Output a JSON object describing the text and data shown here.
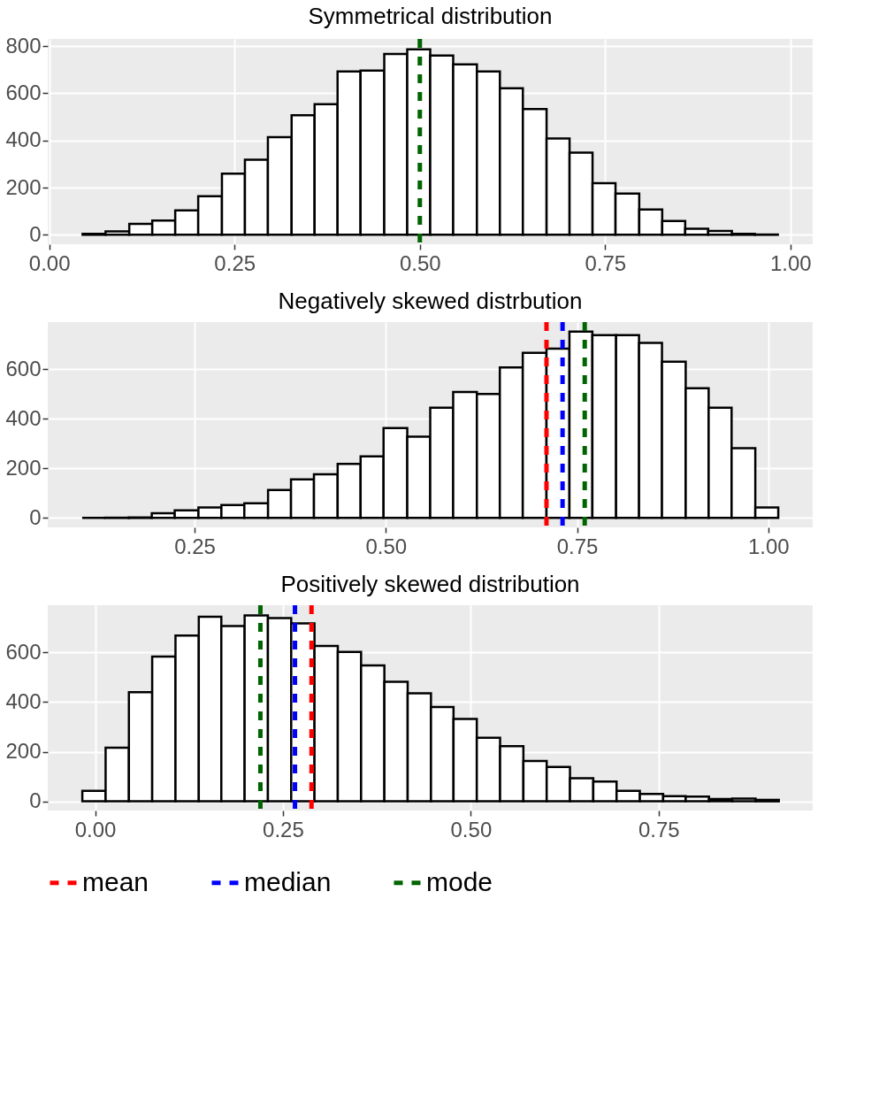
{
  "chart_data": [
    {
      "type": "histogram",
      "title": "Symmetrical distribution",
      "bins": [
        0.045,
        0.076,
        0.108,
        0.139,
        0.17,
        0.201,
        0.233,
        0.264,
        0.295,
        0.327,
        0.358,
        0.389,
        0.42,
        0.452,
        0.483,
        0.514,
        0.545,
        0.577,
        0.608,
        0.639,
        0.671,
        0.702,
        0.733,
        0.764,
        0.796,
        0.827,
        0.858,
        0.889,
        0.921,
        0.952,
        0.983
      ],
      "values": [
        4,
        14,
        46,
        60,
        103,
        163,
        259,
        318,
        414,
        507,
        553,
        692,
        696,
        766,
        786,
        760,
        722,
        692,
        621,
        533,
        408,
        348,
        219,
        175,
        107,
        58,
        26,
        16,
        4,
        1
      ],
      "xlim": [
        -0.002,
        1.03
      ],
      "xticks": [
        {
          "value": 0,
          "label": "0.00"
        },
        {
          "value": 0.25,
          "label": "0.25"
        },
        {
          "value": 0.5,
          "label": "0.50"
        },
        {
          "value": 0.75,
          "label": "0.75"
        },
        {
          "value": 1,
          "label": "1.00"
        }
      ],
      "ylim": [
        -40,
        830
      ],
      "yticks": [
        0,
        200,
        400,
        600,
        800
      ],
      "grid": true,
      "ref_lines": [
        {
          "axis": "x",
          "value": 0.5,
          "color": "#006400",
          "line_style": "dashed"
        }
      ]
    },
    {
      "type": "histogram",
      "title": "Negatively skewed distrbution",
      "bins": [
        0.103,
        0.133,
        0.164,
        0.194,
        0.224,
        0.255,
        0.285,
        0.315,
        0.346,
        0.376,
        0.406,
        0.437,
        0.467,
        0.497,
        0.528,
        0.558,
        0.588,
        0.619,
        0.649,
        0.679,
        0.71,
        0.74,
        0.77,
        0.801,
        0.831,
        0.861,
        0.892,
        0.922,
        0.952,
        0.983,
        1.013
      ],
      "values": [
        0,
        1,
        2,
        19,
        31,
        42,
        52,
        59,
        113,
        156,
        176,
        218,
        248,
        363,
        328,
        445,
        508,
        500,
        607,
        666,
        683,
        752,
        737,
        737,
        706,
        630,
        523,
        445,
        281,
        42
      ],
      "xlim": [
        0.058,
        1.058
      ],
      "xticks": [
        {
          "value": 0.25,
          "label": "0.25"
        },
        {
          "value": 0.5,
          "label": "0.50"
        },
        {
          "value": 0.75,
          "label": "0.75"
        },
        {
          "value": 1,
          "label": "1.00"
        }
      ],
      "ylim": [
        -38,
        790
      ],
      "yticks": [
        0,
        200,
        400,
        600
      ],
      "grid": true,
      "ref_lines": [
        {
          "axis": "x",
          "value": 0.71,
          "color": "#ff0000",
          "line_style": "dashed"
        },
        {
          "axis": "x",
          "value": 0.731,
          "color": "#0000ff",
          "line_style": "dashed"
        },
        {
          "axis": "x",
          "value": 0.76,
          "color": "#006400",
          "line_style": "dashed"
        }
      ]
    },
    {
      "type": "histogram",
      "title": "Positively skewed distribution",
      "bins": [
        -0.017,
        0.014,
        0.045,
        0.076,
        0.107,
        0.138,
        0.168,
        0.199,
        0.23,
        0.261,
        0.292,
        0.323,
        0.354,
        0.385,
        0.416,
        0.447,
        0.477,
        0.508,
        0.539,
        0.57,
        0.601,
        0.632,
        0.663,
        0.694,
        0.725,
        0.756,
        0.786,
        0.817,
        0.848,
        0.879,
        0.91
      ],
      "values": [
        42,
        216,
        440,
        583,
        668,
        744,
        706,
        749,
        738,
        717,
        626,
        602,
        548,
        482,
        435,
        380,
        332,
        256,
        222,
        163,
        139,
        93,
        80,
        42,
        30,
        21,
        19,
        9,
        11,
        6
      ],
      "xlim": [
        -0.063,
        0.955
      ],
      "xticks": [
        {
          "value": 0,
          "label": "0.00"
        },
        {
          "value": 0.25,
          "label": "0.25"
        },
        {
          "value": 0.5,
          "label": "0.50"
        },
        {
          "value": 0.75,
          "label": "0.75"
        }
      ],
      "ylim": [
        -37,
        790
      ],
      "yticks": [
        0,
        200,
        400,
        600
      ],
      "grid": true,
      "legend": "bottom",
      "ref_lines": [
        {
          "axis": "x",
          "value": 0.288,
          "label": "mean",
          "color": "#ff0000",
          "line_style": "dashed"
        },
        {
          "axis": "x",
          "value": 0.266,
          "label": "median",
          "color": "#0000ff",
          "line_style": "dashed"
        },
        {
          "axis": "x",
          "value": 0.22,
          "label": "mode",
          "color": "#006400",
          "line_style": "dashed"
        }
      ]
    }
  ]
}
